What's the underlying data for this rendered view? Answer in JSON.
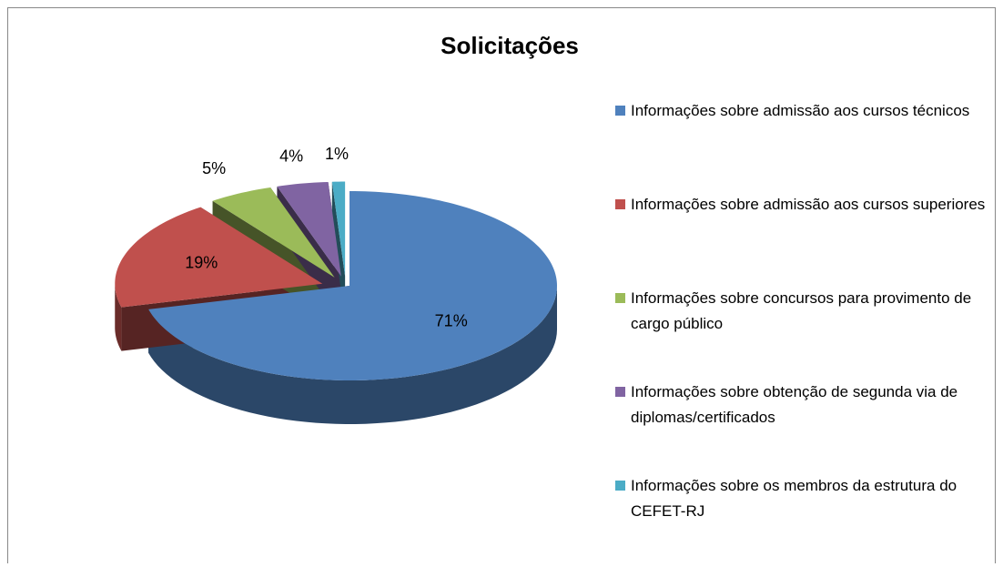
{
  "chart_data": {
    "type": "pie",
    "title": "Solicitações",
    "categories": [
      "Informações sobre admissão aos cursos técnicos",
      "Informações sobre admissão aos cursos superiores",
      "Informações sobre concursos para provimento de cargo público",
      "Informações sobre obtenção de segunda via de diplomas/certificados",
      "Informações sobre os membros da estrutura do CEFET-RJ"
    ],
    "values": [
      71,
      19,
      5,
      4,
      1
    ],
    "value_labels": [
      "71%",
      "19%",
      "5%",
      "4%",
      "1%"
    ],
    "colors": [
      "#4f81bd",
      "#c0504d",
      "#9bbb59",
      "#8064a2",
      "#4bacc6"
    ],
    "legend": "right"
  }
}
